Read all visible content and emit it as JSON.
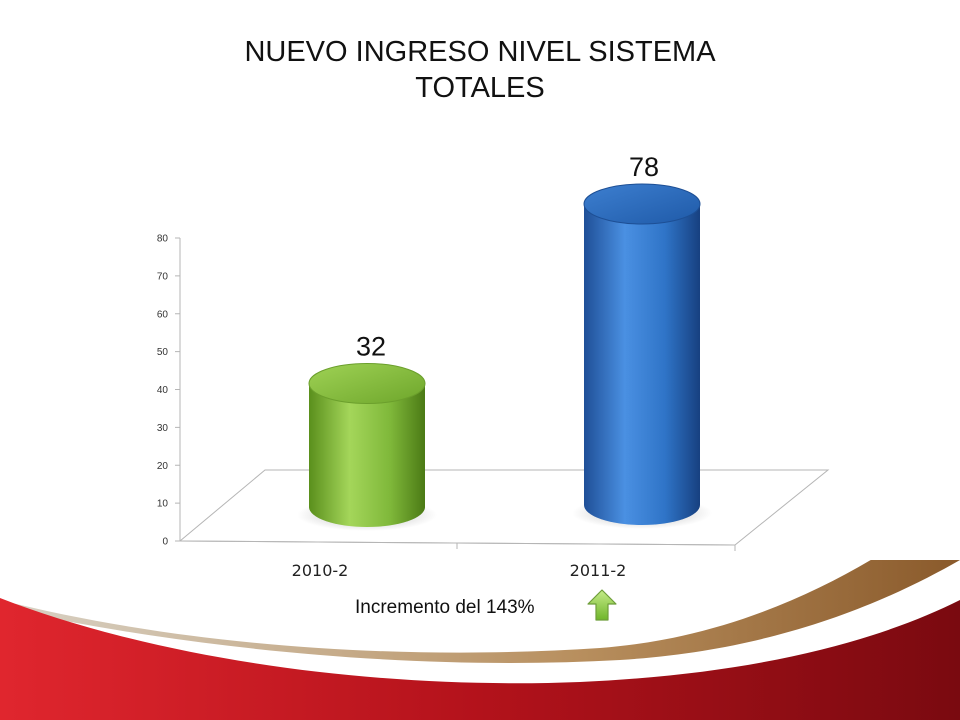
{
  "slide": {
    "title_line1": "NUEVO INGRESO NIVEL SISTEMA",
    "title_line2": "TOTALES",
    "note": "Incremento del 143%",
    "note_icon": "green-up-arrow-icon"
  },
  "chart_data": {
    "type": "bar",
    "style": "3d-cylinder",
    "categories": [
      "2010-2",
      "2011-2"
    ],
    "values": [
      32,
      78
    ],
    "data_labels": [
      "32",
      "78"
    ],
    "colors": [
      "#8dc63f",
      "#2f74c7"
    ],
    "ylim": [
      0,
      80
    ],
    "yticks": [
      0,
      10,
      20,
      30,
      40,
      50,
      60,
      70,
      80
    ],
    "title": "",
    "xlabel": "",
    "ylabel": "",
    "grid": false,
    "legend": "none"
  }
}
